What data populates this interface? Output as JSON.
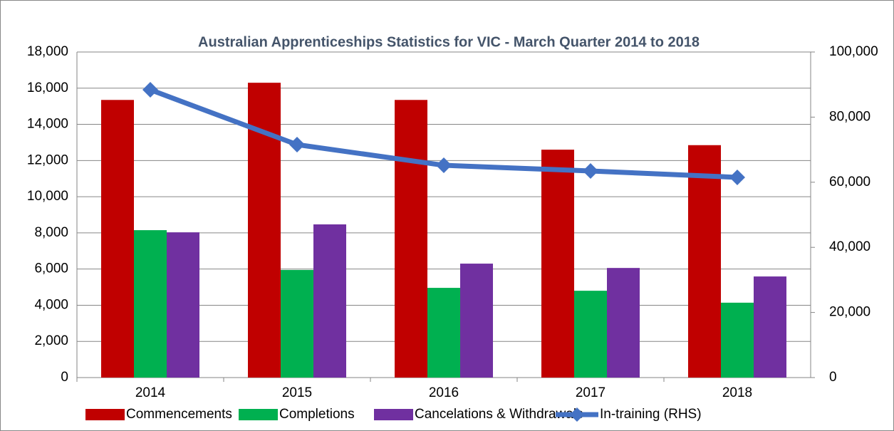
{
  "chart_data": {
    "type": "bar",
    "title": "Australian Apprenticeships Statistics for VIC - March Quarter  2014 to 2018",
    "categories": [
      "2014",
      "2015",
      "2016",
      "2017",
      "2018"
    ],
    "series": [
      {
        "name": "Commencements",
        "color": "#c00000",
        "values": [
          15350,
          16300,
          15350,
          12600,
          12850
        ]
      },
      {
        "name": "Completions",
        "color": "#00b050",
        "values": [
          8150,
          5950,
          4960,
          4800,
          4140
        ]
      },
      {
        "name": "Cancelations & Withdrawals",
        "color": "#7030a0",
        "values": [
          8030,
          8470,
          6300,
          6060,
          5590
        ]
      },
      {
        "name": "In-training (RHS)",
        "color": "#4472c4",
        "type": "line",
        "axis": "y2",
        "values": [
          88400,
          71550,
          65200,
          63450,
          61500
        ]
      }
    ],
    "ylim": [
      0,
      18000
    ],
    "yticks": [
      0,
      {
        "value": 2000,
        "label": "2,000"
      },
      {
        "value": 4000,
        "label": "4,000"
      },
      {
        "value": 6000,
        "label": "6,000"
      },
      {
        "value": 8000,
        "label": "8,000"
      },
      {
        "value": 10000,
        "label": "10,000"
      },
      {
        "value": 12000,
        "label": "12,000"
      },
      {
        "value": 14000,
        "label": "14,000"
      },
      {
        "value": 16000,
        "label": "16,000"
      },
      {
        "value": 18000,
        "label": "18,000"
      }
    ],
    "y2lim": [
      0,
      100000
    ],
    "y2ticks": [
      0,
      {
        "value": 20000,
        "label": "20,000"
      },
      {
        "value": 40000,
        "label": "40,000"
      },
      {
        "value": 60000,
        "label": "60,000"
      },
      {
        "value": 80000,
        "label": "80,000"
      },
      {
        "value": 100000,
        "label": "100,000"
      }
    ],
    "grid": true,
    "legend": "bottom"
  }
}
